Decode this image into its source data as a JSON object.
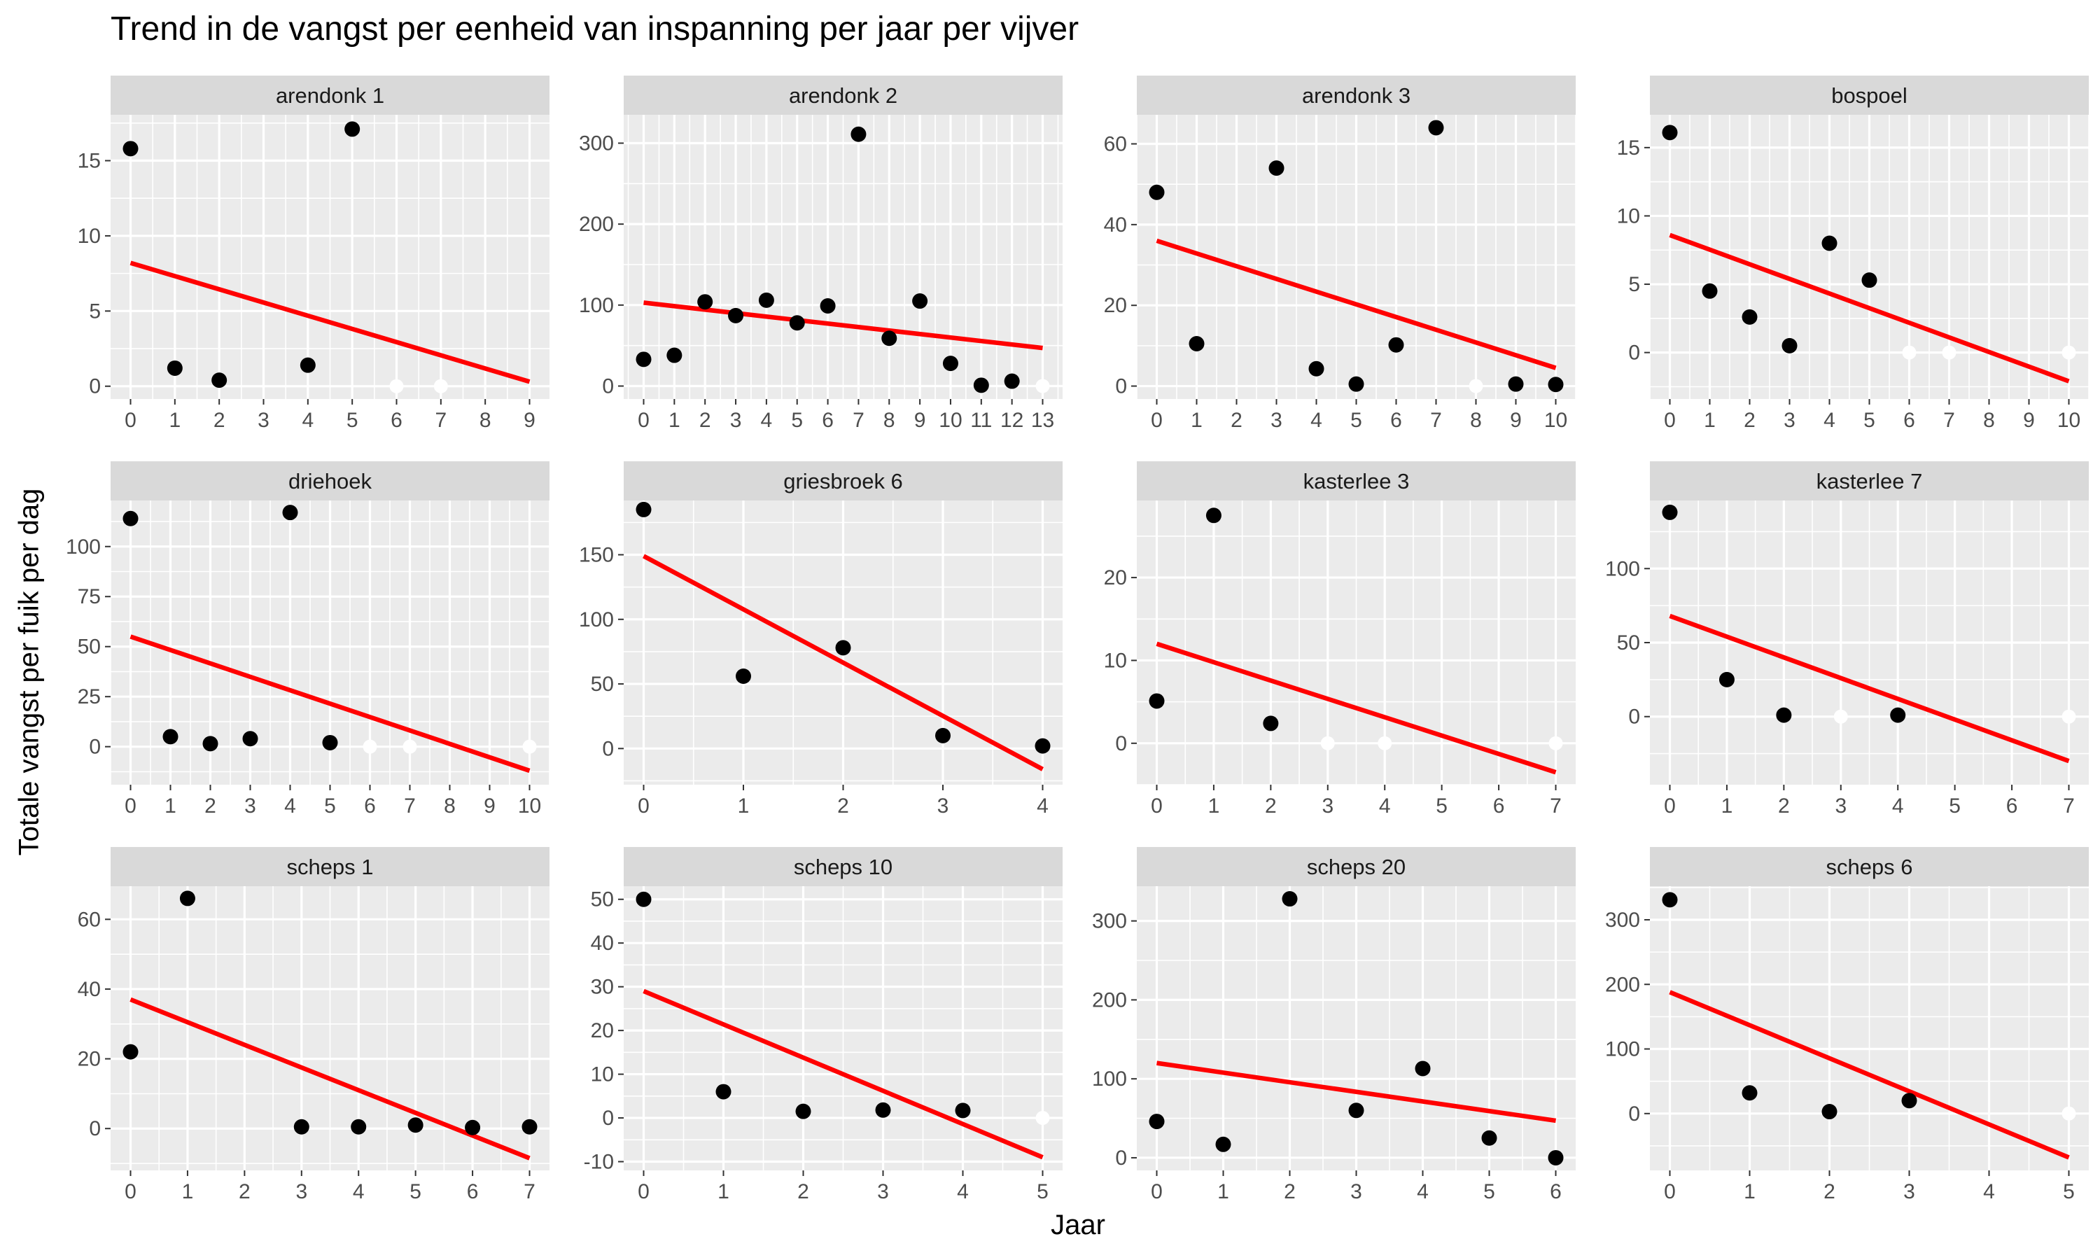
{
  "title": "Trend in de vangst per eenheid van inspanning per jaar per vijver",
  "xlabel": "Jaar",
  "ylabel": "Totale vangst per fuik per dag",
  "colors": {
    "panel_bg": "#EBEBEB",
    "strip_bg": "#D9D9D9",
    "grid": "#FFFFFF",
    "point": "#000000",
    "trend": "#FF0000",
    "zero_point": "#FFFFFF"
  },
  "chart_data": [
    {
      "type": "scatter",
      "title": "arendonk 1",
      "xlim": [
        -0.45,
        9.45
      ],
      "ylim": [
        -0.85,
        18.05
      ],
      "xticks": [
        0,
        1,
        2,
        3,
        4,
        5,
        6,
        7,
        8,
        9
      ],
      "yticks": [
        0,
        5,
        10,
        15
      ],
      "points": [
        [
          0,
          15.8
        ],
        [
          1,
          1.2
        ],
        [
          2,
          0.4
        ],
        [
          4,
          1.4
        ],
        [
          5,
          17.1
        ]
      ],
      "zero_points": [
        [
          6,
          0
        ],
        [
          7,
          0
        ]
      ],
      "trend": [
        [
          0,
          8.2
        ],
        [
          9,
          0.3
        ]
      ]
    },
    {
      "type": "scatter",
      "title": "arendonk 2",
      "xlim": [
        -0.65,
        13.65
      ],
      "ylim": [
        -16,
        335
      ],
      "xticks": [
        0,
        1,
        2,
        3,
        4,
        5,
        6,
        7,
        8,
        9,
        10,
        11,
        12,
        13
      ],
      "yticks": [
        0,
        100,
        200,
        300
      ],
      "points": [
        [
          0,
          33
        ],
        [
          1,
          38
        ],
        [
          2,
          104
        ],
        [
          3,
          87
        ],
        [
          4,
          106
        ],
        [
          5,
          78
        ],
        [
          6,
          99
        ],
        [
          7,
          311
        ],
        [
          8,
          59
        ],
        [
          9,
          105
        ],
        [
          10,
          28
        ],
        [
          11,
          1
        ],
        [
          12,
          6
        ]
      ],
      "zero_points": [
        [
          13,
          0
        ]
      ],
      "trend": [
        [
          0,
          103
        ],
        [
          13,
          47
        ]
      ]
    },
    {
      "type": "scatter",
      "title": "arendonk 3",
      "xlim": [
        -0.5,
        10.5
      ],
      "ylim": [
        -3.2,
        67.2
      ],
      "xticks": [
        0,
        1,
        2,
        3,
        4,
        5,
        6,
        7,
        8,
        9,
        10
      ],
      "yticks": [
        0,
        20,
        40,
        60
      ],
      "points": [
        [
          0,
          48
        ],
        [
          1,
          10.5
        ],
        [
          3,
          54
        ],
        [
          4,
          4.3
        ],
        [
          5,
          0.5
        ],
        [
          6,
          10.2
        ],
        [
          7,
          64
        ],
        [
          9,
          0.5
        ],
        [
          10,
          0.4
        ]
      ],
      "zero_points": [
        [
          8,
          0
        ]
      ],
      "trend": [
        [
          0,
          36
        ],
        [
          10,
          4.5
        ]
      ]
    },
    {
      "type": "scatter",
      "title": "bospoel",
      "xlim": [
        -0.5,
        10.5
      ],
      "ylim": [
        -3.4,
        17.4
      ],
      "xticks": [
        0,
        1,
        2,
        3,
        4,
        5,
        6,
        7,
        8,
        9,
        10
      ],
      "yticks": [
        0,
        5,
        10,
        15
      ],
      "points": [
        [
          0,
          16.1
        ],
        [
          1,
          4.5
        ],
        [
          2,
          2.6
        ],
        [
          3,
          0.5
        ],
        [
          4,
          8
        ],
        [
          5,
          5.3
        ]
      ],
      "zero_points": [
        [
          6,
          0
        ],
        [
          7,
          0
        ],
        [
          10,
          0
        ]
      ],
      "trend": [
        [
          0,
          8.6
        ],
        [
          10,
          -2.1
        ]
      ]
    },
    {
      "type": "scatter",
      "title": "driehoek",
      "xlim": [
        -0.5,
        10.5
      ],
      "ylim": [
        -19,
        123
      ],
      "xticks": [
        0,
        1,
        2,
        3,
        4,
        5,
        6,
        7,
        8,
        9,
        10
      ],
      "yticks": [
        0,
        25,
        50,
        75,
        100
      ],
      "points": [
        [
          0,
          114
        ],
        [
          1,
          5
        ],
        [
          2,
          1.5
        ],
        [
          3,
          4
        ],
        [
          4,
          117
        ],
        [
          5,
          2
        ]
      ],
      "zero_points": [
        [
          6,
          0
        ],
        [
          7,
          0
        ],
        [
          10,
          0
        ]
      ],
      "trend": [
        [
          0,
          55
        ],
        [
          10,
          -12
        ]
      ]
    },
    {
      "type": "scatter",
      "title": "griesbroek 6",
      "xlim": [
        -0.2,
        4.2
      ],
      "ylim": [
        -28,
        192
      ],
      "xticks": [
        0,
        1,
        2,
        3,
        4
      ],
      "yticks": [
        0,
        50,
        100,
        150
      ],
      "points": [
        [
          0,
          185
        ],
        [
          1,
          56
        ],
        [
          2,
          78
        ],
        [
          3,
          10
        ],
        [
          4,
          2
        ]
      ],
      "zero_points": [],
      "trend": [
        [
          0,
          149
        ],
        [
          4,
          -16
        ]
      ]
    },
    {
      "type": "scatter",
      "title": "kasterlee 3",
      "xlim": [
        -0.35,
        7.35
      ],
      "ylim": [
        -5.0,
        29.3
      ],
      "xticks": [
        0,
        1,
        2,
        3,
        4,
        5,
        6,
        7
      ],
      "yticks": [
        0,
        10,
        20
      ],
      "points": [
        [
          0,
          5.1
        ],
        [
          1,
          27.5
        ],
        [
          2,
          2.4
        ]
      ],
      "zero_points": [
        [
          3,
          0
        ],
        [
          4,
          0
        ],
        [
          7,
          0
        ]
      ],
      "trend": [
        [
          0,
          12
        ],
        [
          7,
          -3.5
        ]
      ]
    },
    {
      "type": "scatter",
      "title": "kasterlee 7",
      "xlim": [
        -0.35,
        7.35
      ],
      "ylim": [
        -46,
        146
      ],
      "xticks": [
        0,
        1,
        2,
        3,
        4,
        5,
        6,
        7
      ],
      "yticks": [
        0,
        50,
        100
      ],
      "points": [
        [
          0,
          138
        ],
        [
          1,
          25
        ],
        [
          2,
          1
        ],
        [
          4,
          1
        ]
      ],
      "zero_points": [
        [
          3,
          0
        ],
        [
          7,
          0
        ]
      ],
      "trend": [
        [
          0,
          68
        ],
        [
          7,
          -30
        ]
      ]
    },
    {
      "type": "scatter",
      "title": "scheps 1",
      "xlim": [
        -0.35,
        7.35
      ],
      "ylim": [
        -12,
        69.5
      ],
      "xticks": [
        0,
        1,
        2,
        3,
        4,
        5,
        6,
        7
      ],
      "yticks": [
        0,
        20,
        40,
        60
      ],
      "points": [
        [
          0,
          22
        ],
        [
          1,
          66
        ],
        [
          3,
          0.5
        ],
        [
          4,
          0.5
        ],
        [
          5,
          1
        ],
        [
          6,
          0.3
        ],
        [
          7,
          0.5
        ]
      ],
      "zero_points": [],
      "trend": [
        [
          0,
          37
        ],
        [
          7,
          -8.5
        ]
      ]
    },
    {
      "type": "scatter",
      "title": "scheps 10",
      "xlim": [
        -0.25,
        5.25
      ],
      "ylim": [
        -12,
        53
      ],
      "xticks": [
        0,
        1,
        2,
        3,
        4,
        5
      ],
      "yticks": [
        -10,
        0,
        10,
        20,
        30,
        40,
        50
      ],
      "points": [
        [
          0,
          50
        ],
        [
          1,
          6
        ],
        [
          2,
          1.5
        ],
        [
          3,
          1.8
        ],
        [
          4,
          1.7
        ]
      ],
      "zero_points": [
        [
          5,
          0
        ]
      ],
      "trend": [
        [
          0,
          29
        ],
        [
          5,
          -9
        ]
      ]
    },
    {
      "type": "scatter",
      "title": "scheps 20",
      "xlim": [
        -0.3,
        6.3
      ],
      "ylim": [
        -16,
        344
      ],
      "xticks": [
        0,
        1,
        2,
        3,
        4,
        5,
        6
      ],
      "yticks": [
        0,
        100,
        200,
        300
      ],
      "points": [
        [
          0,
          46
        ],
        [
          1,
          17
        ],
        [
          2,
          328
        ],
        [
          3,
          60
        ],
        [
          4,
          113
        ],
        [
          5,
          25
        ],
        [
          6,
          0
        ]
      ],
      "zero_points": [],
      "trend": [
        [
          0,
          120
        ],
        [
          6,
          47
        ]
      ]
    },
    {
      "type": "scatter",
      "title": "scheps 6",
      "xlim": [
        -0.25,
        5.25
      ],
      "ylim": [
        -88,
        352
      ],
      "xticks": [
        0,
        1,
        2,
        3,
        4,
        5
      ],
      "yticks": [
        0,
        100,
        200,
        300
      ],
      "points": [
        [
          0,
          331
        ],
        [
          1,
          32
        ],
        [
          2,
          3
        ],
        [
          3,
          20
        ]
      ],
      "zero_points": [
        [
          5,
          0
        ]
      ],
      "trend": [
        [
          0,
          188
        ],
        [
          5,
          -68
        ]
      ]
    }
  ]
}
